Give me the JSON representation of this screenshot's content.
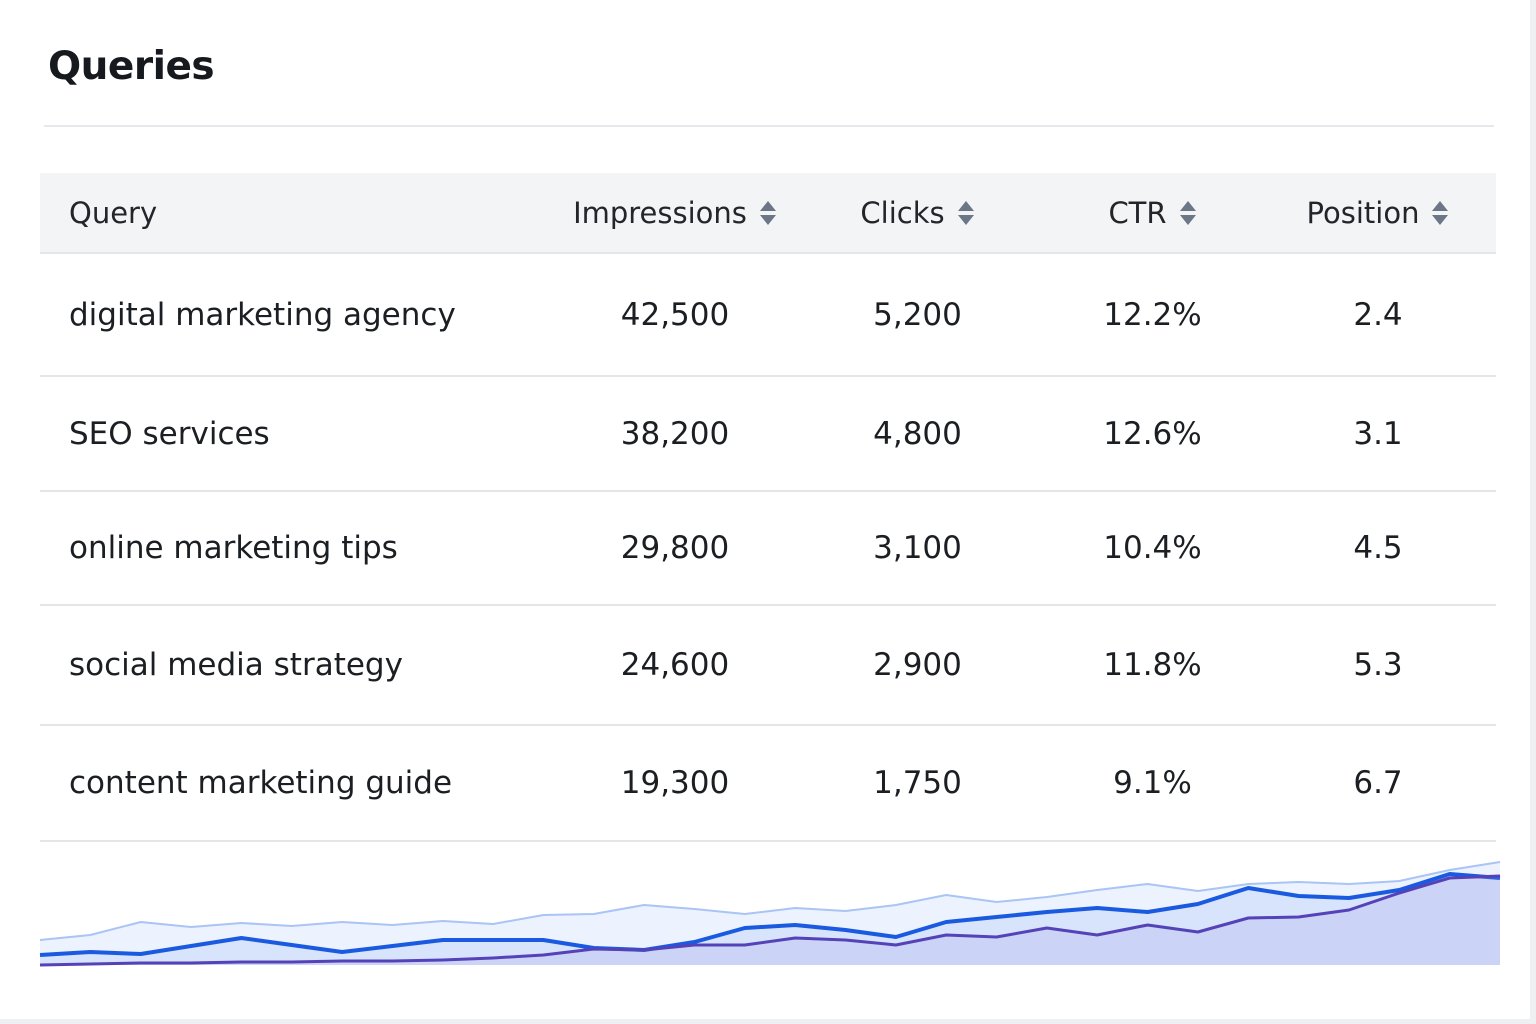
{
  "title": "Queries",
  "table": {
    "columns": [
      {
        "label": "Query",
        "sortable": false
      },
      {
        "label": "Impressions",
        "sortable": true
      },
      {
        "label": "Clicks",
        "sortable": true
      },
      {
        "label": "CTR",
        "sortable": true
      },
      {
        "label": "Position",
        "sortable": true
      }
    ],
    "rows": [
      [
        "digital marketing agency",
        "42,500",
        "5,200",
        "12.2%",
        "2.4"
      ],
      [
        "SEO services",
        "38,200",
        "4,800",
        "12.6%",
        "3.1"
      ],
      [
        "online marketing tips",
        "29,800",
        "3,100",
        "10.4%",
        "4.5"
      ],
      [
        "social media strategy",
        "24,600",
        "2,900",
        "11.8%",
        "5.3"
      ],
      [
        "content marketing guide",
        "19,300",
        "1,750",
        "9.1%",
        "6.7"
      ]
    ]
  },
  "chart_data": {
    "type": "area",
    "title": "",
    "xlabel": "",
    "ylabel": "",
    "ylim": [
      0,
      110
    ],
    "grid": false,
    "series": [
      {
        "name": "series-light",
        "color": "#a9c4f5",
        "values": [
          25,
          30,
          43,
          38,
          42,
          39,
          43,
          40,
          44,
          41,
          50,
          51,
          60,
          56,
          51,
          57,
          54,
          60,
          70,
          63,
          68,
          75,
          81,
          74,
          81,
          83,
          81,
          84,
          95,
          103
        ]
      },
      {
        "name": "series-blue",
        "color": "#1a5ae0",
        "values": [
          10,
          13,
          11,
          19,
          27,
          20,
          13,
          19,
          25,
          25,
          25,
          17,
          15,
          23,
          37,
          40,
          35,
          28,
          43,
          48,
          53,
          57,
          53,
          61,
          77,
          69,
          67,
          75,
          91,
          87
        ]
      },
      {
        "name": "series-purple",
        "color": "#5542b8",
        "values": [
          0,
          1,
          2,
          2,
          3,
          3,
          4,
          4,
          5,
          7,
          10,
          16,
          15,
          20,
          20,
          27,
          25,
          20,
          30,
          28,
          37,
          30,
          40,
          33,
          47,
          48,
          55,
          72,
          87,
          89
        ]
      }
    ]
  }
}
